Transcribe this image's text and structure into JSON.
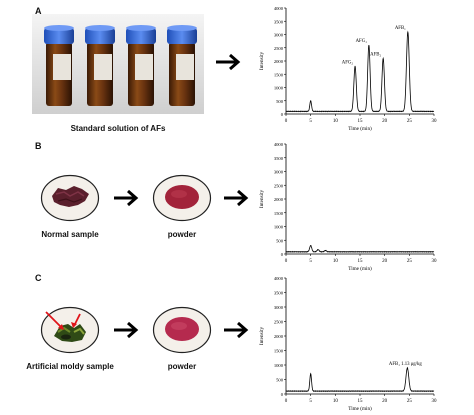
{
  "panels": {
    "a": {
      "letter": "A",
      "caption": "Standard solution of AFs"
    },
    "b": {
      "letter": "B",
      "left_caption": "Normal sample",
      "right_caption": "powder"
    },
    "c": {
      "letter": "C",
      "left_caption": "Artificial moldy sample",
      "right_caption": "powder"
    }
  },
  "chart_data": [
    {
      "type": "line",
      "xlabel": "Time (min)",
      "ylabel": "Intensity",
      "xlim": [
        0,
        30
      ],
      "ylim": [
        0,
        4000
      ],
      "xticks": [
        0,
        5,
        10,
        15,
        20,
        25,
        30
      ],
      "yticks": [
        0,
        500,
        1000,
        1500,
        2000,
        2500,
        3000,
        3500,
        4000
      ],
      "baseline": 100,
      "peaks": [
        {
          "x": 5.0,
          "height": 400,
          "width": 0.25
        },
        {
          "x": 14.0,
          "height": 1700,
          "width": 0.35,
          "label": "AFG₂"
        },
        {
          "x": 16.8,
          "height": 2500,
          "width": 0.35,
          "label": "AFG₁"
        },
        {
          "x": 19.7,
          "height": 2000,
          "width": 0.35,
          "label": "AFB₂"
        },
        {
          "x": 24.7,
          "height": 3000,
          "width": 0.4,
          "label": "AFB₁"
        }
      ]
    },
    {
      "type": "line",
      "xlabel": "Time (min)",
      "ylabel": "Intensity",
      "xlim": [
        0,
        30
      ],
      "ylim": [
        0,
        4000
      ],
      "xticks": [
        0,
        5,
        10,
        15,
        20,
        25,
        30
      ],
      "yticks": [
        0,
        500,
        1000,
        1500,
        2000,
        2500,
        3000,
        3500,
        4000
      ],
      "baseline": 80,
      "peaks": [
        {
          "x": 5.0,
          "height": 230,
          "width": 0.3
        },
        {
          "x": 6.5,
          "height": 80,
          "width": 0.3
        },
        {
          "x": 8.0,
          "height": 50,
          "width": 0.3
        }
      ]
    },
    {
      "type": "line",
      "xlabel": "Time (min)",
      "ylabel": "Intensity",
      "xlim": [
        0,
        30
      ],
      "ylim": [
        0,
        4000
      ],
      "xticks": [
        0,
        5,
        10,
        15,
        20,
        25,
        30
      ],
      "yticks": [
        0,
        500,
        1000,
        1500,
        2000,
        2500,
        3000,
        3500,
        4000
      ],
      "baseline": 100,
      "peaks": [
        {
          "x": 5.0,
          "height": 600,
          "width": 0.25
        },
        {
          "x": 24.6,
          "height": 800,
          "width": 0.4,
          "label": "AFB₁ 1.13 μg/kg"
        }
      ]
    }
  ],
  "vial_caps": "#3c6fd6"
}
